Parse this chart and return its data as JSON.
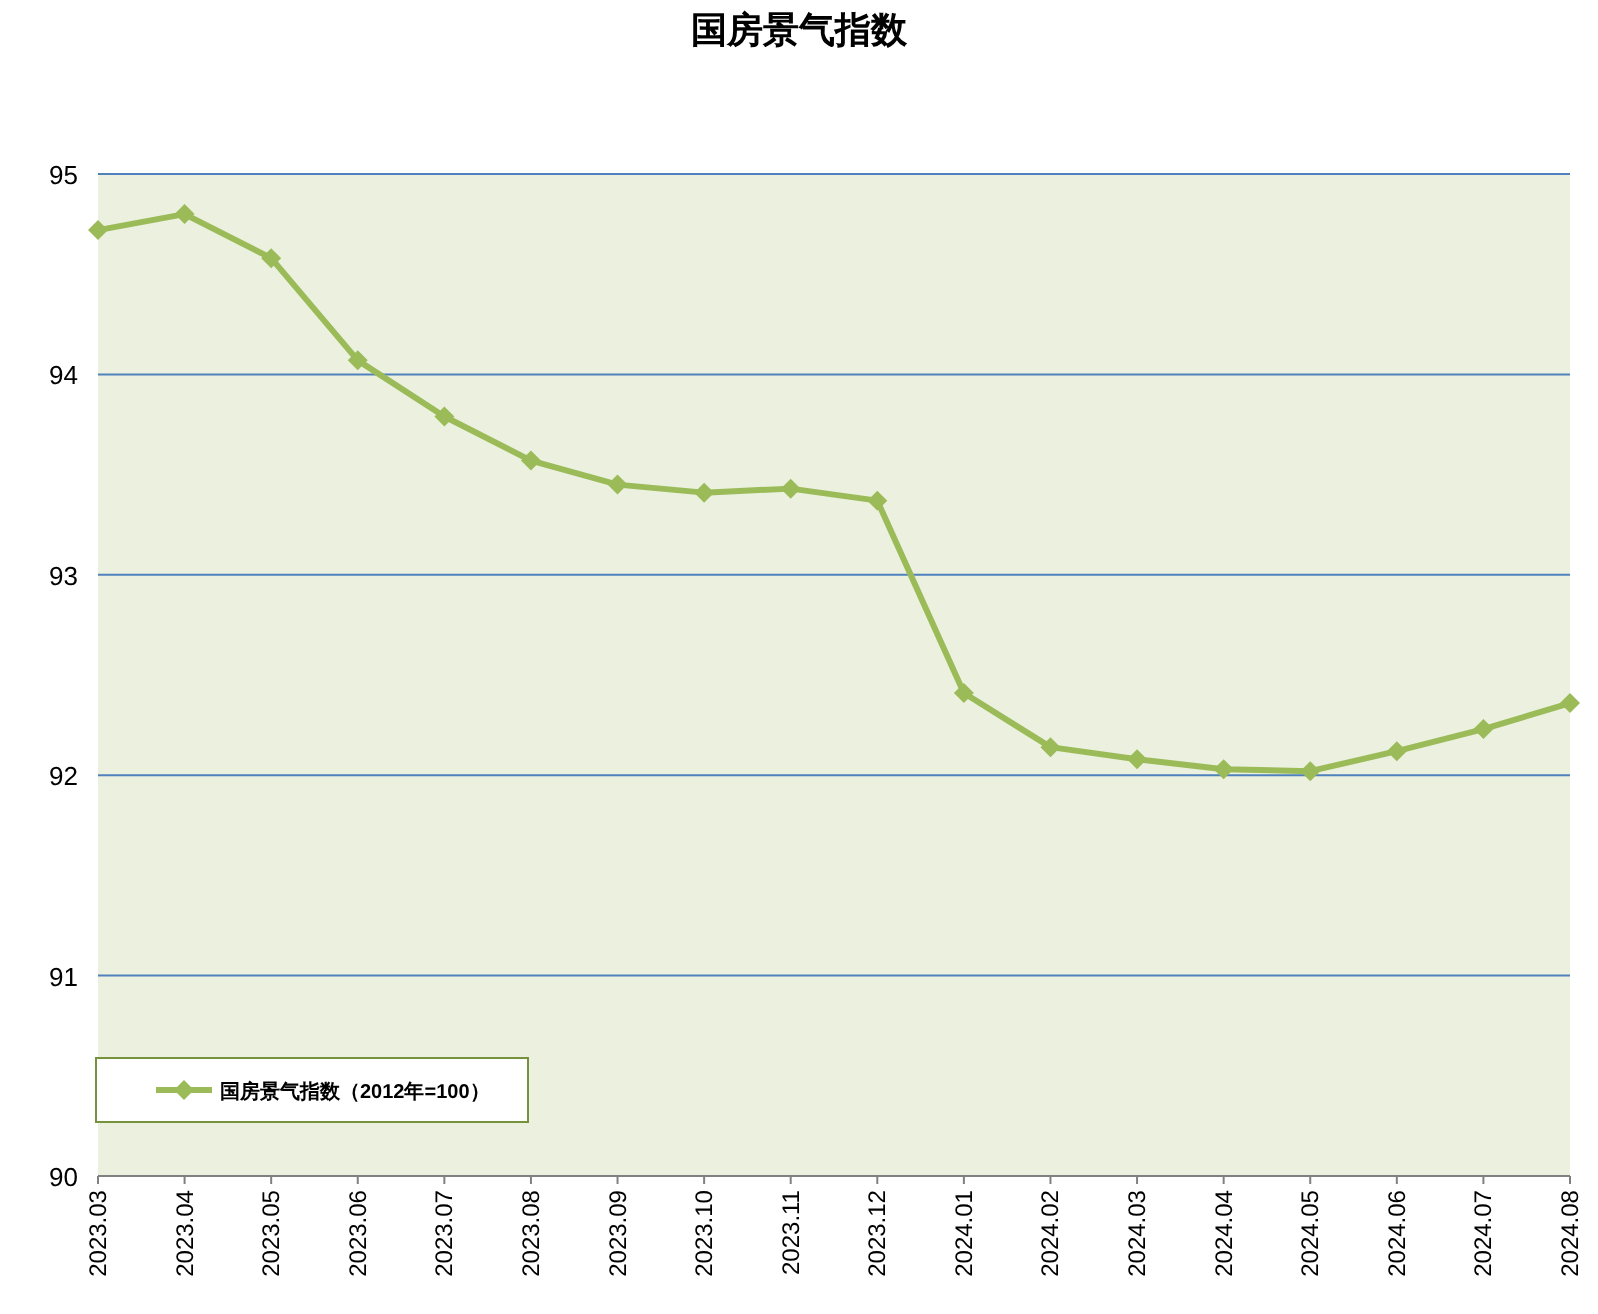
{
  "chart_data": {
    "type": "line",
    "title": "国房景气指数",
    "categories": [
      "2023.03",
      "2023.04",
      "2023.05",
      "2023.06",
      "2023.07",
      "2023.08",
      "2023.09",
      "2023.10",
      "2023.11",
      "2023.12",
      "2024.01",
      "2024.02",
      "2024.03",
      "2024.04",
      "2024.05",
      "2024.06",
      "2024.07",
      "2024.08"
    ],
    "series": [
      {
        "name": "国房景气指数（2012年=100）",
        "color": "#9bbb59",
        "values": [
          94.72,
          94.8,
          94.58,
          94.07,
          93.79,
          93.57,
          93.45,
          93.41,
          93.43,
          93.37,
          92.41,
          92.14,
          92.08,
          92.03,
          92.02,
          92.12,
          92.23,
          92.36
        ]
      }
    ],
    "ylim": [
      90,
      95
    ],
    "yticks": [
      90,
      91,
      92,
      93,
      94,
      95
    ],
    "grid": "y",
    "legend": "bottom left",
    "marker": "diamond",
    "line_style": "solid"
  }
}
